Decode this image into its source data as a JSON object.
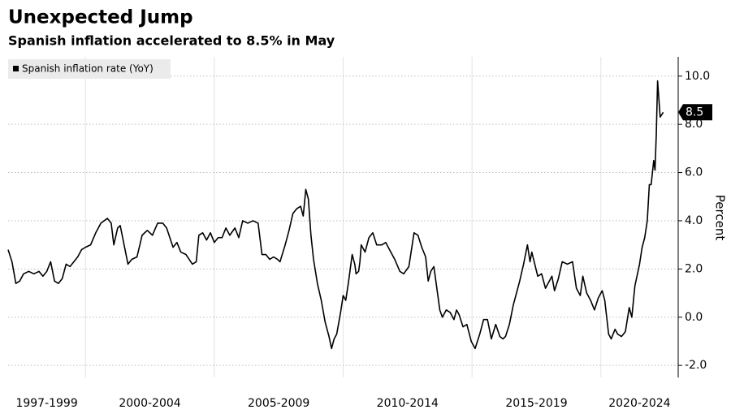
{
  "chart_data": {
    "type": "line",
    "title": "Unexpected Jump",
    "subtitle": "Spanish inflation accelerated to 8.5% in May",
    "y_axis_label": "Percent",
    "xlim": [
      1997,
      2023
    ],
    "xticks": [
      2000,
      2005,
      2010,
      2015,
      2020
    ],
    "x_periods": [
      {
        "label": "1997-1999",
        "start": 1997,
        "end": 2000
      },
      {
        "label": "2000-2004",
        "start": 2000,
        "end": 2005
      },
      {
        "label": "2005-2009",
        "start": 2005,
        "end": 2010
      },
      {
        "label": "2010-2014",
        "start": 2010,
        "end": 2015
      },
      {
        "label": "2015-2019",
        "start": 2015,
        "end": 2020
      },
      {
        "label": "2020-2024",
        "start": 2020,
        "end": 2025
      }
    ],
    "ylim": [
      -2.5,
      10.8
    ],
    "yticks": [
      {
        "value": -2,
        "label": "-2.0"
      },
      {
        "value": 0,
        "label": "0.0"
      },
      {
        "value": 2,
        "label": "2.0"
      },
      {
        "value": 4,
        "label": "4.0"
      },
      {
        "value": 6,
        "label": "6.0"
      },
      {
        "value": 8,
        "label": "8.0"
      },
      {
        "value": 10,
        "label": "10.0"
      }
    ],
    "grid": true,
    "legend": "top-left",
    "x": [
      1997.0,
      1997.15,
      1997.3,
      1997.45,
      1997.6,
      1997.8,
      1998.0,
      1998.2,
      1998.35,
      1998.5,
      1998.65,
      1998.8,
      1998.95,
      1999.1,
      1999.25,
      1999.4,
      1999.55,
      1999.7,
      1999.85,
      2000.0,
      2000.2,
      2000.4,
      2000.6,
      2000.85,
      2001.0,
      2001.1,
      2001.25,
      2001.35,
      2001.5,
      2001.65,
      2001.8,
      2002.0,
      2002.2,
      2002.4,
      2002.6,
      2002.8,
      2003.0,
      2003.15,
      2003.4,
      2003.55,
      2003.7,
      2003.9,
      2004.15,
      2004.3,
      2004.4,
      2004.55,
      2004.7,
      2004.85,
      2005.0,
      2005.15,
      2005.3,
      2005.45,
      2005.6,
      2005.8,
      2005.95,
      2006.1,
      2006.3,
      2006.5,
      2006.7,
      2006.85,
      2007.0,
      2007.15,
      2007.3,
      2007.45,
      2007.55,
      2007.75,
      2007.9,
      2008.05,
      2008.2,
      2008.35,
      2008.45,
      2008.55,
      2008.65,
      2008.75,
      2008.85,
      2009.0,
      2009.15,
      2009.3,
      2009.45,
      2009.55,
      2009.65,
      2009.75,
      2009.9,
      2010.0,
      2010.1,
      2010.2,
      2010.35,
      2010.45,
      2010.5,
      2010.6,
      2010.65,
      2010.7,
      2010.85,
      2011.0,
      2011.15,
      2011.3,
      2011.5,
      2011.65,
      2011.8,
      2012.0,
      2012.2,
      2012.35,
      2012.55,
      2012.75,
      2012.9,
      2013.05,
      2013.2,
      2013.3,
      2013.4,
      2013.52,
      2013.75,
      2013.85,
      2014.0,
      2014.15,
      2014.3,
      2014.4,
      2014.5,
      2014.65,
      2014.8,
      2014.97,
      2015.12,
      2015.3,
      2015.45,
      2015.6,
      2015.75,
      2015.92,
      2016.08,
      2016.2,
      2016.3,
      2016.45,
      2016.6,
      2016.85,
      2017.0,
      2017.15,
      2017.25,
      2017.32,
      2017.55,
      2017.7,
      2017.85,
      2018.1,
      2018.2,
      2018.35,
      2018.5,
      2018.7,
      2018.9,
      2019.05,
      2019.2,
      2019.3,
      2019.45,
      2019.6,
      2019.75,
      2019.9,
      2020.05,
      2020.15,
      2020.3,
      2020.4,
      2020.55,
      2020.65,
      2020.8,
      2020.95,
      2021.1,
      2021.2,
      2021.32,
      2021.5,
      2021.6,
      2021.7,
      2021.8,
      2021.88,
      2021.95,
      2022.05,
      2022.1,
      2022.15,
      2022.2,
      2022.3,
      2022.42
    ],
    "series": [
      {
        "name": "Spanish inflation rate (YoY)",
        "color": "#000000",
        "values": [
          2.8,
          2.3,
          1.4,
          1.5,
          1.8,
          1.9,
          1.8,
          1.9,
          1.7,
          1.9,
          2.3,
          1.5,
          1.4,
          1.6,
          2.2,
          2.1,
          2.3,
          2.5,
          2.8,
          2.9,
          3.0,
          3.5,
          3.9,
          4.1,
          3.9,
          3.0,
          3.7,
          3.8,
          3.0,
          2.2,
          2.4,
          2.5,
          3.4,
          3.6,
          3.4,
          3.9,
          3.9,
          3.7,
          2.9,
          3.1,
          2.7,
          2.6,
          2.2,
          2.3,
          3.4,
          3.5,
          3.2,
          3.5,
          3.1,
          3.3,
          3.3,
          3.7,
          3.4,
          3.7,
          3.3,
          4.0,
          3.9,
          4.0,
          3.9,
          2.6,
          2.6,
          2.4,
          2.5,
          2.4,
          2.3,
          3.0,
          3.6,
          4.3,
          4.5,
          4.6,
          4.2,
          5.3,
          4.9,
          3.4,
          2.4,
          1.4,
          0.7,
          -0.2,
          -0.8,
          -1.3,
          -0.9,
          -0.7,
          0.2,
          0.9,
          0.7,
          1.4,
          2.6,
          2.2,
          1.8,
          1.9,
          2.3,
          3.0,
          2.7,
          3.3,
          3.5,
          3.0,
          3.0,
          3.1,
          2.8,
          2.4,
          1.9,
          1.8,
          2.1,
          3.5,
          3.4,
          2.9,
          2.5,
          1.5,
          1.9,
          2.1,
          0.3,
          0.0,
          0.3,
          0.2,
          -0.1,
          0.3,
          0.1,
          -0.4,
          -0.3,
          -1.0,
          -1.3,
          -0.7,
          -0.1,
          -0.1,
          -0.9,
          -0.3,
          -0.8,
          -0.9,
          -0.8,
          -0.3,
          0.5,
          1.5,
          2.2,
          3.0,
          2.3,
          2.7,
          1.7,
          1.8,
          1.2,
          1.7,
          1.1,
          1.6,
          2.3,
          2.2,
          2.3,
          1.2,
          0.9,
          1.7,
          1.0,
          0.7,
          0.3,
          0.8,
          1.1,
          0.7,
          -0.7,
          -0.9,
          -0.5,
          -0.7,
          -0.8,
          -0.6,
          0.4,
          0.0,
          1.3,
          2.2,
          2.9,
          3.3,
          4.0,
          5.5,
          5.5,
          6.5,
          6.1,
          7.6,
          9.8,
          8.3,
          8.5
        ]
      }
    ]
  }
}
